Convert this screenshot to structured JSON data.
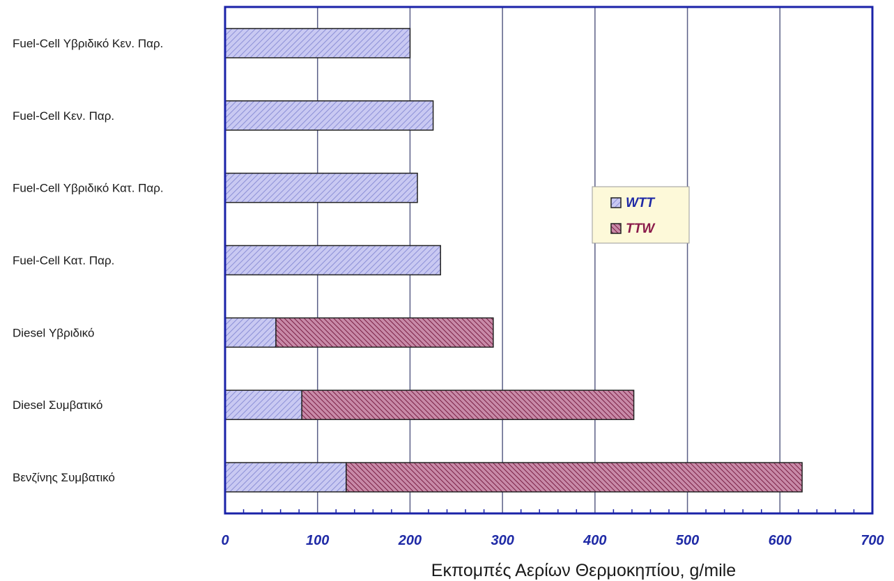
{
  "chart_data": {
    "type": "bar",
    "orientation": "horizontal",
    "stacked": true,
    "categories": [
      "Fuel-Cell Υβριδικό Κεν. Παρ.",
      "Fuel-Cell Κεν. Παρ.",
      "Fuel-Cell Υβριδικό Κατ. Παρ.",
      "Fuel-Cell Κατ. Παρ.",
      "Diesel Υβριδικό",
      "Diesel Συμβατικό",
      "Βενζίνης Συμβατικό"
    ],
    "series": [
      {
        "name": "WTT",
        "values": [
          200,
          225,
          208,
          233,
          55,
          83,
          131
        ]
      },
      {
        "name": "TTW",
        "values": [
          0,
          0,
          0,
          0,
          235,
          359,
          493
        ]
      }
    ],
    "xlim": [
      0,
      700
    ],
    "xticks": [
      0,
      100,
      200,
      300,
      400,
      500,
      600,
      700
    ],
    "xlabel": "Εκπομπές Αερίων Θερμοκηπίου, g/mile",
    "ylabel": "",
    "grid": "vertical",
    "legend_position": "center-right",
    "colors": {
      "frame": "#1a22a8",
      "gridline": "#5a5f86",
      "wtt_fill": "#c9c9f2",
      "wtt_hatch": "#8b8fd6",
      "ttw_fill": "#c88aa8",
      "ttw_hatch": "#7a1f44",
      "legend_bg": "#fdf9d9",
      "wtt_text": "#1f2aa6",
      "ttw_text": "#8a1a4a"
    }
  }
}
